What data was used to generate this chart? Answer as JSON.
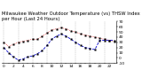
{
  "title": "Milwaukee Weather Outdoor Temperature (vs) THSW Index per Hour (Last 24 Hours)",
  "hours": [
    0,
    1,
    2,
    3,
    4,
    5,
    6,
    7,
    8,
    9,
    10,
    11,
    12,
    13,
    14,
    15,
    16,
    17,
    18,
    19,
    20,
    21,
    22,
    23
  ],
  "temp": [
    30,
    22,
    26,
    30,
    32,
    34,
    36,
    36,
    42,
    48,
    54,
    56,
    58,
    56,
    52,
    50,
    46,
    44,
    42,
    40,
    38,
    36,
    34,
    32
  ],
  "thsw": [
    20,
    10,
    2,
    -4,
    -2,
    2,
    4,
    8,
    14,
    24,
    36,
    42,
    46,
    42,
    36,
    30,
    24,
    20,
    18,
    16,
    34,
    34,
    34,
    34
  ],
  "temp_color": "#dd0000",
  "thsw_color": "#0000cc",
  "marker_color": "#000000",
  "bg_color": "#ffffff",
  "grid_color": "#999999",
  "ylim": [
    -10,
    70
  ],
  "ytick_vals": [
    -10,
    0,
    10,
    20,
    30,
    40,
    50,
    60,
    70
  ],
  "ytick_labels": [
    "-10",
    "0",
    "10",
    "20",
    "30",
    "40",
    "50",
    "60",
    "70"
  ],
  "grid_hours": [
    0,
    3,
    6,
    9,
    12,
    15,
    18,
    21
  ],
  "title_fontsize": 3.8,
  "tick_fontsize": 3.2
}
